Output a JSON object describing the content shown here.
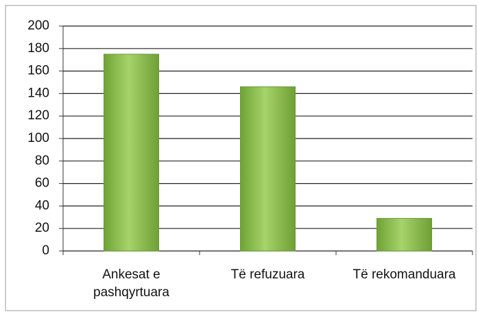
{
  "chart_data": {
    "type": "bar",
    "categories": [
      "Ankesat e pashqyrtuara",
      "Të refuzuara",
      "Të rekomanduara"
    ],
    "values": [
      175,
      146,
      29
    ],
    "color": "#8fc24f",
    "ylim": [
      0,
      200
    ],
    "yticks": [
      0,
      20,
      40,
      60,
      80,
      100,
      120,
      140,
      160,
      180,
      200
    ],
    "grid": true
  }
}
